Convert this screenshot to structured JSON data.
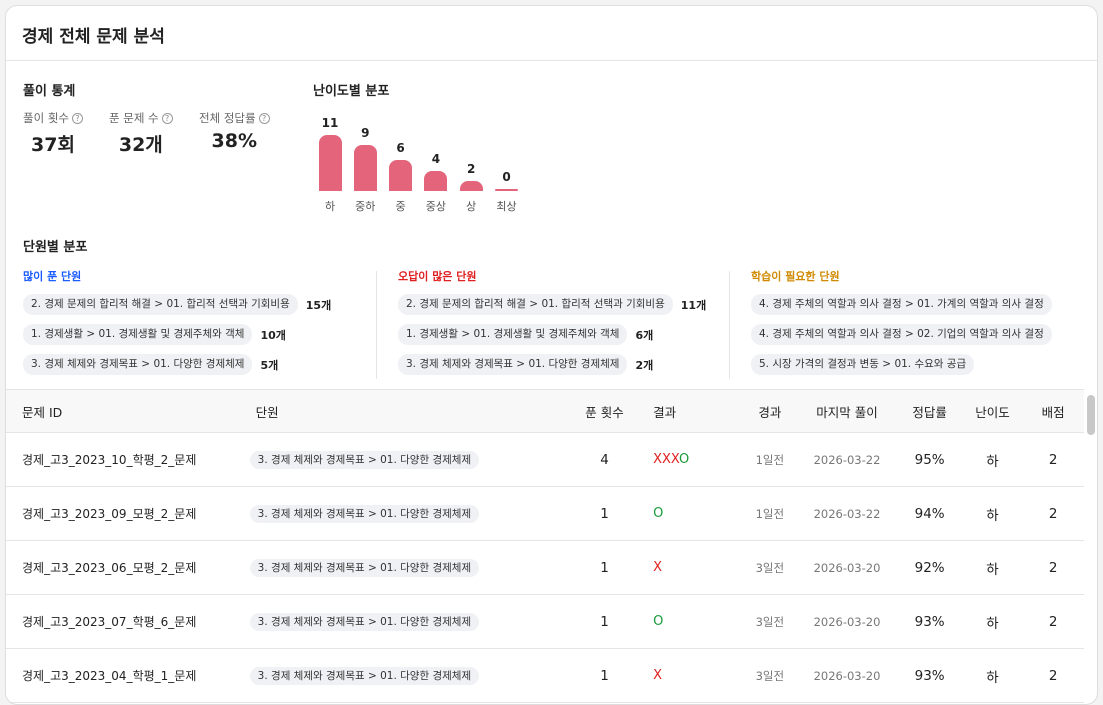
{
  "title": "경제 전체 문제 분석",
  "stats": {
    "section": "풀이 통계",
    "items": [
      {
        "label": "풀이 횟수",
        "value": "37회"
      },
      {
        "label": "푼 문제 수",
        "value": "32개"
      },
      {
        "label": "전체 정답률",
        "value": "38%"
      }
    ]
  },
  "chart_data": {
    "type": "bar",
    "title": "난이도별 분포",
    "categories": [
      "하",
      "중하",
      "중",
      "중상",
      "상",
      "최상"
    ],
    "values": [
      11,
      9,
      6,
      4,
      2,
      0
    ],
    "color": "#e4647b"
  },
  "units": {
    "section": "단원별 분포",
    "columns": [
      {
        "title": "많이 푼 단원",
        "color": "#1a5cff",
        "items": [
          {
            "name": "2. 경제 문제의 합리적 해결 > 01. 합리적 선택과 기회비용",
            "count": "15개"
          },
          {
            "name": "1. 경제생활 > 01. 경제생활 및 경제주체와 객체",
            "count": "10개"
          },
          {
            "name": "3. 경제 체제와 경제목표 > 01. 다양한 경제체제",
            "count": "5개"
          }
        ]
      },
      {
        "title": "오답이 많은 단원",
        "color": "#e02020",
        "items": [
          {
            "name": "2. 경제 문제의 합리적 해결 > 01. 합리적 선택과 기회비용",
            "count": "11개"
          },
          {
            "name": "1. 경제생활 > 01. 경제생활 및 경제주체와 객체",
            "count": "6개"
          },
          {
            "name": "3. 경제 체제와 경제목표 > 01. 다양한 경제체제",
            "count": "2개"
          }
        ]
      },
      {
        "title": "학습이 필요한 단원",
        "color": "#d08a00",
        "items": [
          {
            "name": "4. 경제 주체의 역할과 의사 결정 > 01. 가계의 역할과 의사 결정"
          },
          {
            "name": "4. 경제 주체의 역할과 의사 결정 > 02. 기업의 역할과 의사 결정"
          },
          {
            "name": "5. 시장 가격의 결정과 변동 > 01. 수요와 공급"
          }
        ]
      }
    ]
  },
  "table": {
    "headers": [
      "문제 ID",
      "단원",
      "푼 횟수",
      "결과",
      "경과",
      "마지막 풀이",
      "정답률",
      "난이도",
      "배점"
    ],
    "rows": [
      {
        "id": "경제_고3_2023_10_학평_2_문제",
        "unit": "3. 경제 체제와 경제목표 > 01. 다양한 경제체제",
        "count": "4",
        "result": "XXXO",
        "elapsed": "1일전",
        "last": "2026-03-22",
        "rate": "95%",
        "level": "하",
        "score": "2"
      },
      {
        "id": "경제_고3_2023_09_모평_2_문제",
        "unit": "3. 경제 체제와 경제목표 > 01. 다양한 경제체제",
        "count": "1",
        "result": "O",
        "elapsed": "1일전",
        "last": "2026-03-22",
        "rate": "94%",
        "level": "하",
        "score": "2"
      },
      {
        "id": "경제_고3_2023_06_모평_2_문제",
        "unit": "3. 경제 체제와 경제목표 > 01. 다양한 경제체제",
        "count": "1",
        "result": "X",
        "elapsed": "3일전",
        "last": "2026-03-20",
        "rate": "92%",
        "level": "하",
        "score": "2"
      },
      {
        "id": "경제_고3_2023_07_학평_6_문제",
        "unit": "3. 경제 체제와 경제목표 > 01. 다양한 경제체제",
        "count": "1",
        "result": "O",
        "elapsed": "3일전",
        "last": "2026-03-20",
        "rate": "93%",
        "level": "하",
        "score": "2"
      },
      {
        "id": "경제_고3_2023_04_학평_1_문제",
        "unit": "3. 경제 체제와 경제목표 > 01. 다양한 경제체제",
        "count": "1",
        "result": "X",
        "elapsed": "3일전",
        "last": "2026-03-20",
        "rate": "93%",
        "level": "하",
        "score": "2"
      }
    ]
  }
}
